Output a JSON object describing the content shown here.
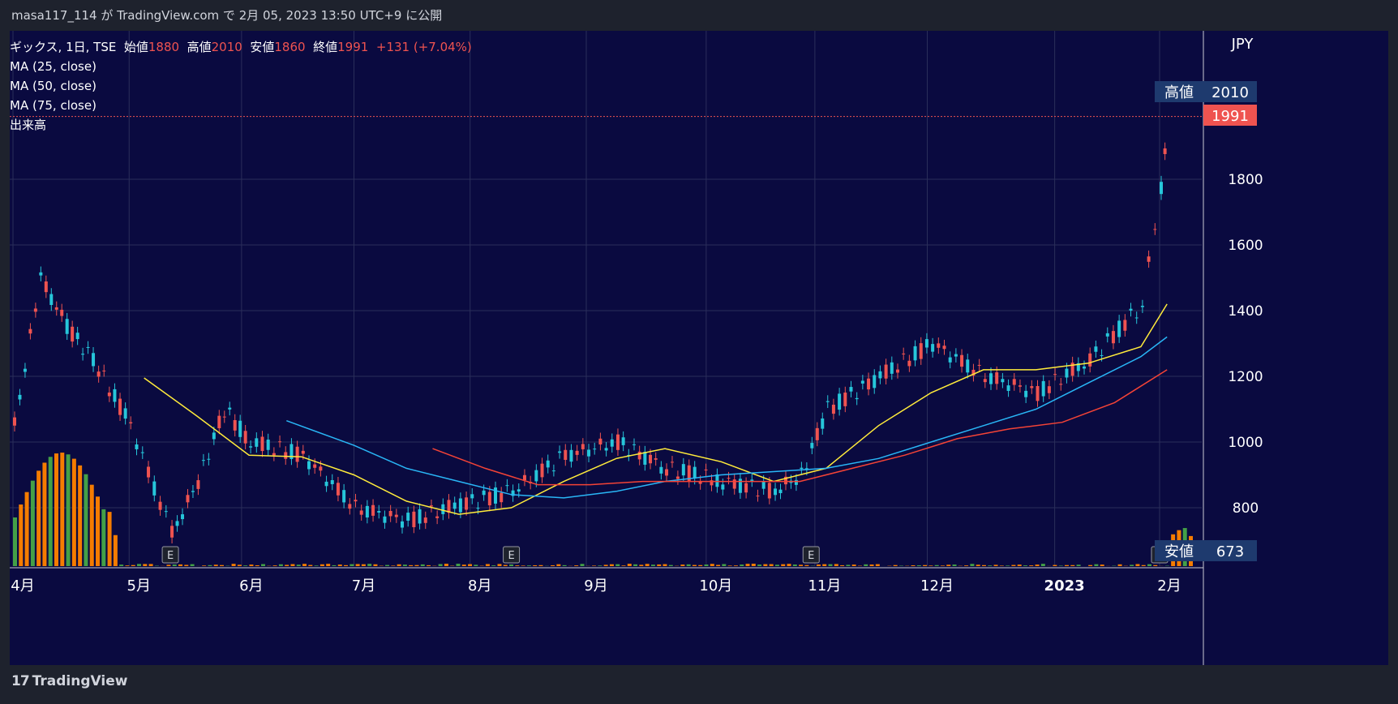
{
  "header": {
    "publish_line": "masa117_114 が TradingView.com で 2月 05, 2023 13:50 UTC+9 に公開"
  },
  "legend": {
    "symbol": "ギックス, 1日, TSE",
    "open_label": "始値",
    "open": "1880",
    "high_label": "高値",
    "high": "2010",
    "low_label": "安値",
    "low": "1860",
    "close_label": "終値",
    "close": "1991",
    "change": "+131 (+7.04%)",
    "ma25": "MA (25, close)",
    "ma50": "MA (50, close)",
    "ma75": "MA (75, close)",
    "volume": "出来高"
  },
  "axis": {
    "currency": "JPY",
    "high_tag_label": "高値",
    "high_tag_value": "2010",
    "last_price": "1991",
    "low_tag_label": "安値",
    "low_tag_value": "673"
  },
  "footer": {
    "brand": "TradingView",
    "logo": "17"
  },
  "colors": {
    "background": "#0a0a40",
    "up": "#ef5350",
    "down": "#26c6da",
    "ma25": "#ffeb3b",
    "ma50": "#29b6f6",
    "ma75": "#f44336",
    "vol_up": "#f57c00",
    "vol_down": "#43a047",
    "earnings": "E"
  },
  "chart_data": {
    "type": "line",
    "ylim": [
      673,
      2010
    ],
    "yticks": [
      800,
      1000,
      1200,
      1400,
      1600,
      1800
    ],
    "xticks": [
      {
        "label": "4月",
        "date": "2022-04-01"
      },
      {
        "label": "5月",
        "date": "2022-05-02"
      },
      {
        "label": "6月",
        "date": "2022-06-01"
      },
      {
        "label": "7月",
        "date": "2022-07-01"
      },
      {
        "label": "8月",
        "date": "2022-08-01"
      },
      {
        "label": "9月",
        "date": "2022-09-01"
      },
      {
        "label": "10月",
        "date": "2022-10-03"
      },
      {
        "label": "11月",
        "date": "2022-11-01"
      },
      {
        "label": "12月",
        "date": "2022-12-01"
      },
      {
        "label": "2023",
        "date": "2023-01-04"
      },
      {
        "label": "2月",
        "date": "2023-02-01"
      }
    ],
    "earnings_markers": [
      "2022-05-13",
      "2022-08-12",
      "2022-10-31",
      "2023-02-01"
    ],
    "series": [
      {
        "name": "MA (25, close)",
        "x": [
          "2022-05-06",
          "2022-05-20",
          "2022-06-03",
          "2022-06-17",
          "2022-07-01",
          "2022-07-15",
          "2022-07-29",
          "2022-08-12",
          "2022-08-26",
          "2022-09-09",
          "2022-09-22",
          "2022-10-07",
          "2022-10-21",
          "2022-11-04",
          "2022-11-18",
          "2022-12-02",
          "2022-12-16",
          "2022-12-30",
          "2023-01-13",
          "2023-01-27",
          "2023-02-03"
        ],
        "values": [
          1195,
          1080,
          960,
          955,
          900,
          820,
          780,
          800,
          880,
          950,
          980,
          940,
          880,
          920,
          1050,
          1150,
          1220,
          1220,
          1240,
          1290,
          1420
        ]
      },
      {
        "name": "MA (50, close)",
        "x": [
          "2022-06-13",
          "2022-07-01",
          "2022-07-15",
          "2022-07-29",
          "2022-08-12",
          "2022-08-26",
          "2022-09-09",
          "2022-09-22",
          "2022-10-07",
          "2022-10-21",
          "2022-11-04",
          "2022-11-18",
          "2022-12-02",
          "2022-12-16",
          "2022-12-30",
          "2023-01-13",
          "2023-01-27",
          "2023-02-03"
        ],
        "values": [
          1065,
          990,
          920,
          880,
          840,
          830,
          850,
          880,
          900,
          910,
          920,
          950,
          1000,
          1050,
          1100,
          1180,
          1260,
          1320
        ]
      },
      {
        "name": "MA (75, close)",
        "x": [
          "2022-07-22",
          "2022-08-05",
          "2022-08-19",
          "2022-09-02",
          "2022-09-16",
          "2022-09-30",
          "2022-10-14",
          "2022-10-28",
          "2022-11-11",
          "2022-11-25",
          "2022-12-09",
          "2022-12-23",
          "2023-01-06",
          "2023-01-20",
          "2023-02-03"
        ],
        "values": [
          980,
          920,
          870,
          870,
          880,
          880,
          880,
          880,
          920,
          960,
          1010,
          1040,
          1060,
          1120,
          1220
        ]
      }
    ],
    "close_path": {
      "name": "",
      "x": [
        "2022-04-01",
        "2022-04-08",
        "2022-04-15",
        "2022-04-22",
        "2022-05-02",
        "2022-05-13",
        "2022-05-20",
        "2022-05-27",
        "2022-06-03",
        "2022-06-17",
        "2022-07-01",
        "2022-07-15",
        "2022-07-29",
        "2022-08-12",
        "2022-08-26",
        "2022-09-09",
        "2022-09-22",
        "2022-10-07",
        "2022-10-21",
        "2022-10-28",
        "2022-11-04",
        "2022-11-18",
        "2022-12-02",
        "2022-12-16",
        "2022-12-30",
        "2023-01-13",
        "2023-01-27",
        "2023-02-01",
        "2023-02-03"
      ],
      "values": [
        1050,
        1500,
        1350,
        1250,
        1050,
        720,
        880,
        1100,
        1000,
        960,
        800,
        760,
        810,
        850,
        960,
        1000,
        920,
        880,
        850,
        900,
        1100,
        1200,
        1300,
        1200,
        1150,
        1250,
        1420,
        1780,
        1991
      ]
    },
    "volume_note": ""
  }
}
